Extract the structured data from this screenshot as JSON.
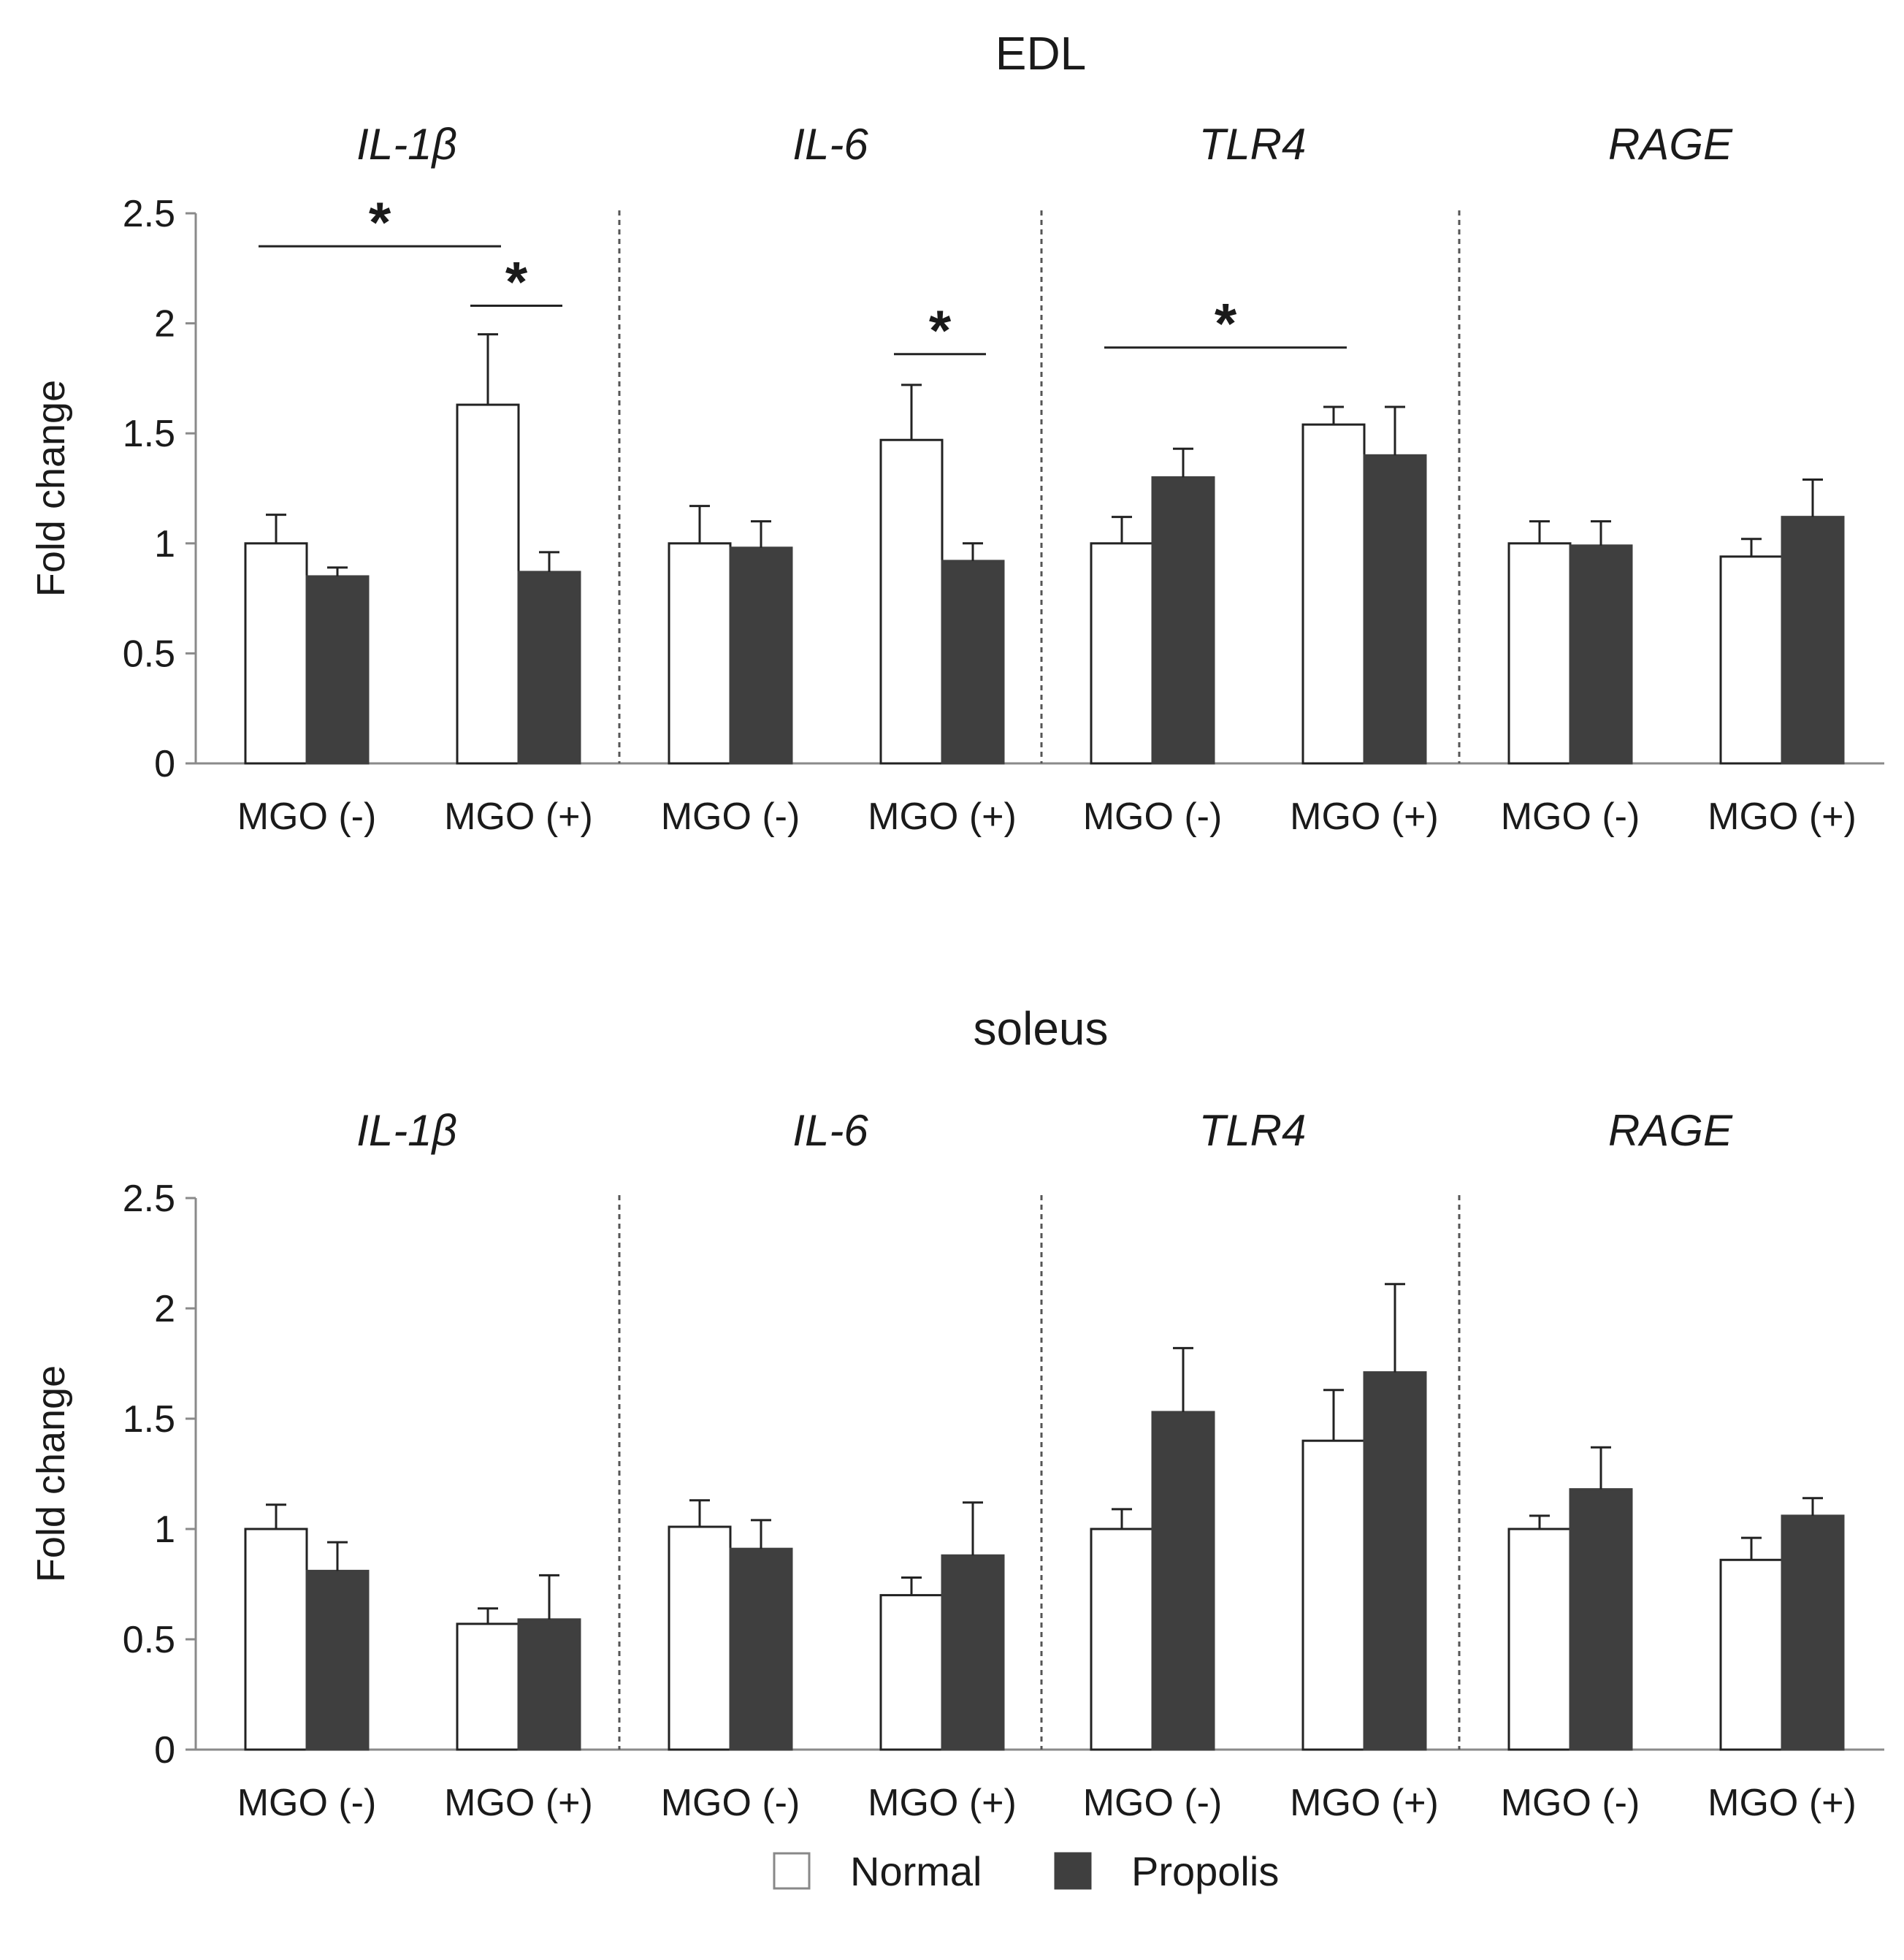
{
  "chart_data": [
    {
      "type": "bar",
      "title": "EDL",
      "ylabel": "Fold change",
      "ylim": [
        0,
        2.5
      ],
      "yticks": [
        "0",
        "0.5",
        "1",
        "1.5",
        "2",
        "2.5"
      ],
      "panels": [
        {
          "gene": "IL-1β",
          "groups": [
            {
              "label": "MGO (-)",
              "normal": 1.0,
              "normal_err": 0.13,
              "propolis": 0.85,
              "propolis_err": 0.04
            },
            {
              "label": "MGO (+)",
              "normal": 1.63,
              "normal_err": 0.32,
              "propolis": 0.87,
              "propolis_err": 0.09
            }
          ]
        },
        {
          "gene": "IL-6",
          "groups": [
            {
              "label": "MGO (-)",
              "normal": 1.0,
              "normal_err": 0.17,
              "propolis": 0.98,
              "propolis_err": 0.12
            },
            {
              "label": "MGO (+)",
              "normal": 1.47,
              "normal_err": 0.25,
              "propolis": 0.92,
              "propolis_err": 0.08
            }
          ]
        },
        {
          "gene": "TLR4",
          "groups": [
            {
              "label": "MGO (-)",
              "normal": 1.0,
              "normal_err": 0.12,
              "propolis": 1.3,
              "propolis_err": 0.13
            },
            {
              "label": "MGO (+)",
              "normal": 1.54,
              "normal_err": 0.08,
              "propolis": 1.4,
              "propolis_err": 0.22
            }
          ]
        },
        {
          "gene": "RAGE",
          "groups": [
            {
              "label": "MGO (-)",
              "normal": 1.0,
              "normal_err": 0.1,
              "propolis": 0.99,
              "propolis_err": 0.11
            },
            {
              "label": "MGO (+)",
              "normal": 0.94,
              "normal_err": 0.08,
              "propolis": 1.12,
              "propolis_err": 0.17
            }
          ]
        }
      ],
      "significance": [
        {
          "panel": 0,
          "from": [
            0,
            "normal"
          ],
          "to": [
            1,
            "normal"
          ],
          "y": 2.35,
          "label": "*"
        },
        {
          "panel": 0,
          "from": [
            1,
            "normal"
          ],
          "to": [
            1,
            "propolis"
          ],
          "y": 2.08,
          "label": "*"
        },
        {
          "panel": 1,
          "from": [
            1,
            "normal"
          ],
          "to": [
            1,
            "propolis"
          ],
          "y": 1.86,
          "label": "*"
        },
        {
          "panel": 2,
          "from": [
            0,
            "normal"
          ],
          "to": [
            1,
            "normal"
          ],
          "y": 1.89,
          "label": "*"
        }
      ]
    },
    {
      "type": "bar",
      "title": "soleus",
      "ylabel": "Fold change",
      "ylim": [
        0,
        2.5
      ],
      "yticks": [
        "0",
        "0.5",
        "1",
        "1.5",
        "2",
        "2.5"
      ],
      "panels": [
        {
          "gene": "IL-1β",
          "groups": [
            {
              "label": "MGO (-)",
              "normal": 1.0,
              "normal_err": 0.11,
              "propolis": 0.81,
              "propolis_err": 0.13
            },
            {
              "label": "MGO (+)",
              "normal": 0.57,
              "normal_err": 0.07,
              "propolis": 0.59,
              "propolis_err": 0.2
            }
          ]
        },
        {
          "gene": "IL-6",
          "groups": [
            {
              "label": "MGO (-)",
              "normal": 1.01,
              "normal_err": 0.12,
              "propolis": 0.91,
              "propolis_err": 0.13
            },
            {
              "label": "MGO (+)",
              "normal": 0.7,
              "normal_err": 0.08,
              "propolis": 0.88,
              "propolis_err": 0.24
            }
          ]
        },
        {
          "gene": "TLR4",
          "groups": [
            {
              "label": "MGO (-)",
              "normal": 1.0,
              "normal_err": 0.09,
              "propolis": 1.53,
              "propolis_err": 0.29
            },
            {
              "label": "MGO (+)",
              "normal": 1.4,
              "normal_err": 0.23,
              "propolis": 1.71,
              "propolis_err": 0.4
            }
          ]
        },
        {
          "gene": "RAGE",
          "groups": [
            {
              "label": "MGO (-)",
              "normal": 1.0,
              "normal_err": 0.06,
              "propolis": 1.18,
              "propolis_err": 0.19
            },
            {
              "label": "MGO (+)",
              "normal": 0.86,
              "normal_err": 0.1,
              "propolis": 1.06,
              "propolis_err": 0.08
            }
          ]
        }
      ],
      "significance": []
    }
  ],
  "legend": {
    "position": "bottom-center",
    "items": [
      {
        "label": "Normal",
        "color": "#ffffff"
      },
      {
        "label": "Propolis",
        "color": "#3f3f3f"
      }
    ]
  },
  "colors": {
    "normal": "#ffffff",
    "propolis": "#3f3f3f",
    "axis": "#8a8a8a",
    "text": "#1a1a1a"
  }
}
